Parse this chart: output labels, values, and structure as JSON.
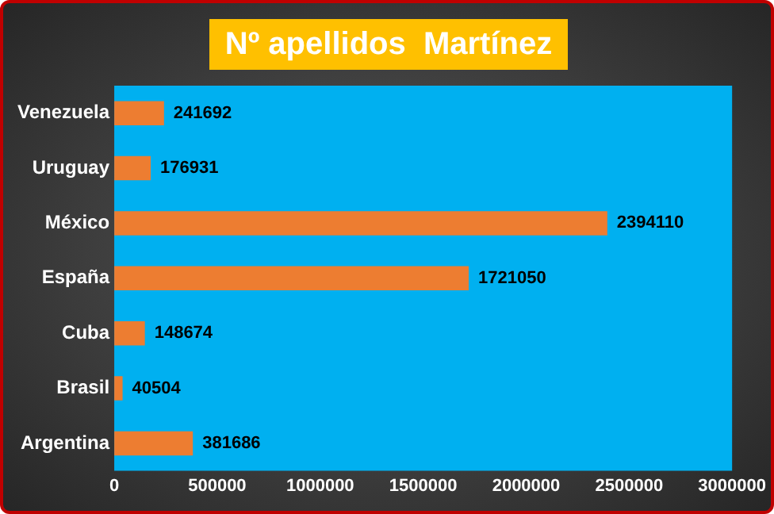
{
  "chart_data": {
    "type": "bar",
    "orientation": "horizontal",
    "title": "Nº apellidos  Martínez",
    "categories": [
      "Venezuela",
      "Uruguay",
      "México",
      "España",
      "Cuba",
      "Brasil",
      "Argentina"
    ],
    "values": [
      241692,
      176931,
      2394110,
      1721050,
      148674,
      40504,
      381686
    ],
    "color": "#ed7d31",
    "xlim": [
      0,
      3000000
    ],
    "xticks": [
      0,
      500000,
      1000000,
      1500000,
      2000000,
      2500000,
      3000000
    ],
    "data_labels": true,
    "grid": false,
    "legend": false
  }
}
